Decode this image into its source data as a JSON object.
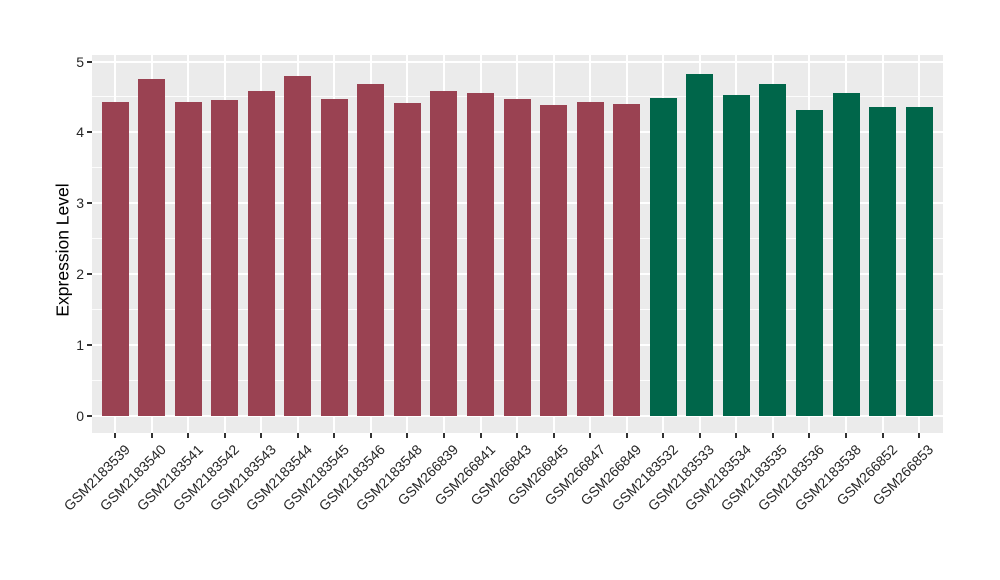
{
  "chart_data": {
    "type": "bar",
    "title": "",
    "xlabel": "",
    "ylabel": "Expression Level",
    "ylim": [
      0,
      5
    ],
    "yticks": [
      "0",
      "1",
      "2",
      "3",
      "4",
      "5"
    ],
    "grid": "horizontal major+minor, vertical major at category centers",
    "legend_position": "none",
    "categories": [
      "GSM2183539",
      "GSM2183540",
      "GSM2183541",
      "GSM2183542",
      "GSM2183543",
      "GSM2183544",
      "GSM2183545",
      "GSM2183546",
      "GSM2183548",
      "GSM266839",
      "GSM266841",
      "GSM266843",
      "GSM266845",
      "GSM266847",
      "GSM266849",
      "GSM2183532",
      "GSM2183533",
      "GSM2183534",
      "GSM2183535",
      "GSM2183536",
      "GSM2183538",
      "GSM266852",
      "GSM266853"
    ],
    "values": [
      4.43,
      4.75,
      4.43,
      4.46,
      4.59,
      4.8,
      4.47,
      4.68,
      4.42,
      4.58,
      4.56,
      4.47,
      4.38,
      4.43,
      4.4,
      4.49,
      4.82,
      4.53,
      4.68,
      4.31,
      4.56,
      4.36,
      4.36
    ],
    "group_index": [
      0,
      0,
      0,
      0,
      0,
      0,
      0,
      0,
      0,
      0,
      0,
      0,
      0,
      0,
      0,
      1,
      1,
      1,
      1,
      1,
      1,
      1,
      1
    ],
    "group_palette": [
      "#9a4252",
      "#00664a"
    ]
  },
  "colors": {
    "figure_bg": "#ffffff",
    "panel_bg": "#ebebeb",
    "gridline": "#ffffff",
    "axis_text": "#262626",
    "tick_mark": "#333333"
  }
}
